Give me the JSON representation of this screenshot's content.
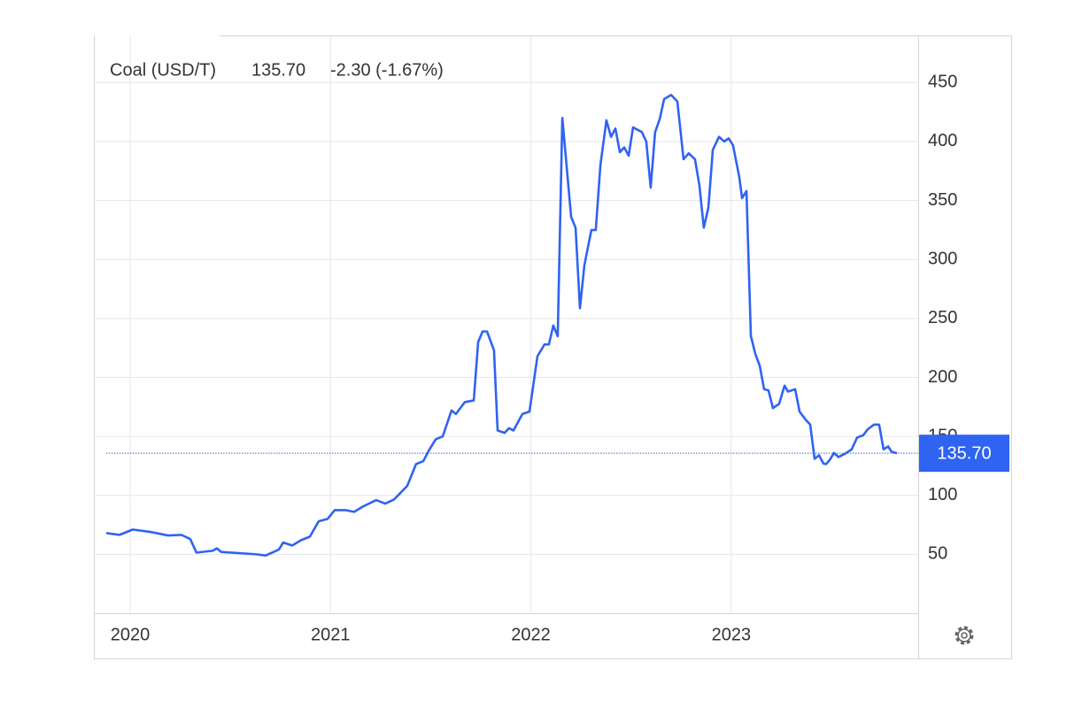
{
  "chart_data": {
    "type": "line",
    "title": "Coal (USD/T)",
    "price": "135.70",
    "change": "-2.30 (-1.67%)",
    "color": "#2f63f2",
    "price_color": "#3b62f0",
    "change_color": "#e8453c",
    "x": [
      2019.881,
      2019.947,
      2020.013,
      2020.102,
      2020.19,
      2020.256,
      2020.3,
      2020.331,
      2020.411,
      2020.433,
      2020.455,
      2020.632,
      2020.676,
      2020.742,
      2020.764,
      2020.809,
      2020.853,
      2020.897,
      2020.941,
      2020.985,
      2021.021,
      2021.074,
      2021.118,
      2021.162,
      2021.228,
      2021.273,
      2021.317,
      2021.383,
      2021.427,
      2021.463,
      2021.494,
      2021.525,
      2021.56,
      2021.604,
      2021.626,
      2021.648,
      2021.67,
      2021.715,
      2021.737,
      2021.759,
      2021.781,
      2021.816,
      2021.834,
      2021.869,
      2021.891,
      2021.913,
      2021.958,
      2021.993,
      2022.033,
      2022.068,
      2022.09,
      2022.112,
      2022.134,
      2022.157,
      2022.201,
      2022.223,
      2022.245,
      2022.267,
      2022.302,
      2022.324,
      2022.347,
      2022.377,
      2022.4,
      2022.422,
      2022.444,
      2022.466,
      2022.488,
      2022.51,
      2022.554,
      2022.576,
      2022.598,
      2022.62,
      2022.643,
      2022.665,
      2022.7,
      2022.731,
      2022.762,
      2022.788,
      2022.819,
      2022.841,
      2022.863,
      2022.886,
      2022.908,
      2022.939,
      2022.965,
      2022.987,
      2023.009,
      2023.04,
      2023.054,
      2023.076,
      2023.098,
      2023.12,
      2023.142,
      2023.164,
      2023.186,
      2023.208,
      2023.239,
      2023.266,
      2023.283,
      2023.319,
      2023.341,
      2023.372,
      2023.394,
      2023.416,
      2023.438,
      2023.46,
      2023.473,
      2023.491,
      2023.513,
      2023.535,
      2023.57,
      2023.601,
      2023.628,
      2023.659,
      2023.681,
      2023.712,
      2023.738,
      2023.76,
      2023.783,
      2023.8,
      2023.827
    ],
    "values": [
      68,
      66.5,
      71,
      69,
      66,
      66.5,
      63,
      51.5,
      53,
      55,
      52,
      50,
      49,
      54,
      60,
      57.5,
      62,
      65,
      78,
      80,
      87.5,
      87.5,
      86,
      90.5,
      96,
      93,
      96.5,
      108,
      126.5,
      129,
      139,
      147.5,
      150,
      172,
      169,
      174,
      179,
      180.5,
      230,
      239,
      239,
      223,
      155,
      153,
      157,
      155,
      169,
      171,
      218,
      228,
      228,
      244,
      235,
      420,
      336,
      327,
      258.6,
      295,
      325,
      325,
      380,
      418,
      404,
      411,
      391,
      395,
      388,
      412,
      408,
      400,
      361,
      408,
      419,
      436,
      439.5,
      434,
      385,
      390,
      385,
      363,
      327,
      344,
      393,
      404,
      400,
      402.7,
      396.7,
      370,
      352,
      358,
      235,
      220,
      210,
      190,
      189,
      174,
      177.6,
      193,
      188,
      190,
      171,
      164,
      160,
      131,
      134,
      127,
      126.5,
      130,
      136,
      132.5,
      135.5,
      139,
      149,
      151,
      156,
      160,
      160,
      139,
      141.5,
      137,
      135.7
    ],
    "xlim": [
      2019.819,
      2023.933
    ],
    "xticks": [
      2020,
      2021,
      2022,
      2023
    ],
    "ylim": [
      0,
      490
    ],
    "yticks": [
      50,
      100,
      150,
      200,
      250,
      300,
      350,
      400,
      450
    ],
    "grid": true
  }
}
